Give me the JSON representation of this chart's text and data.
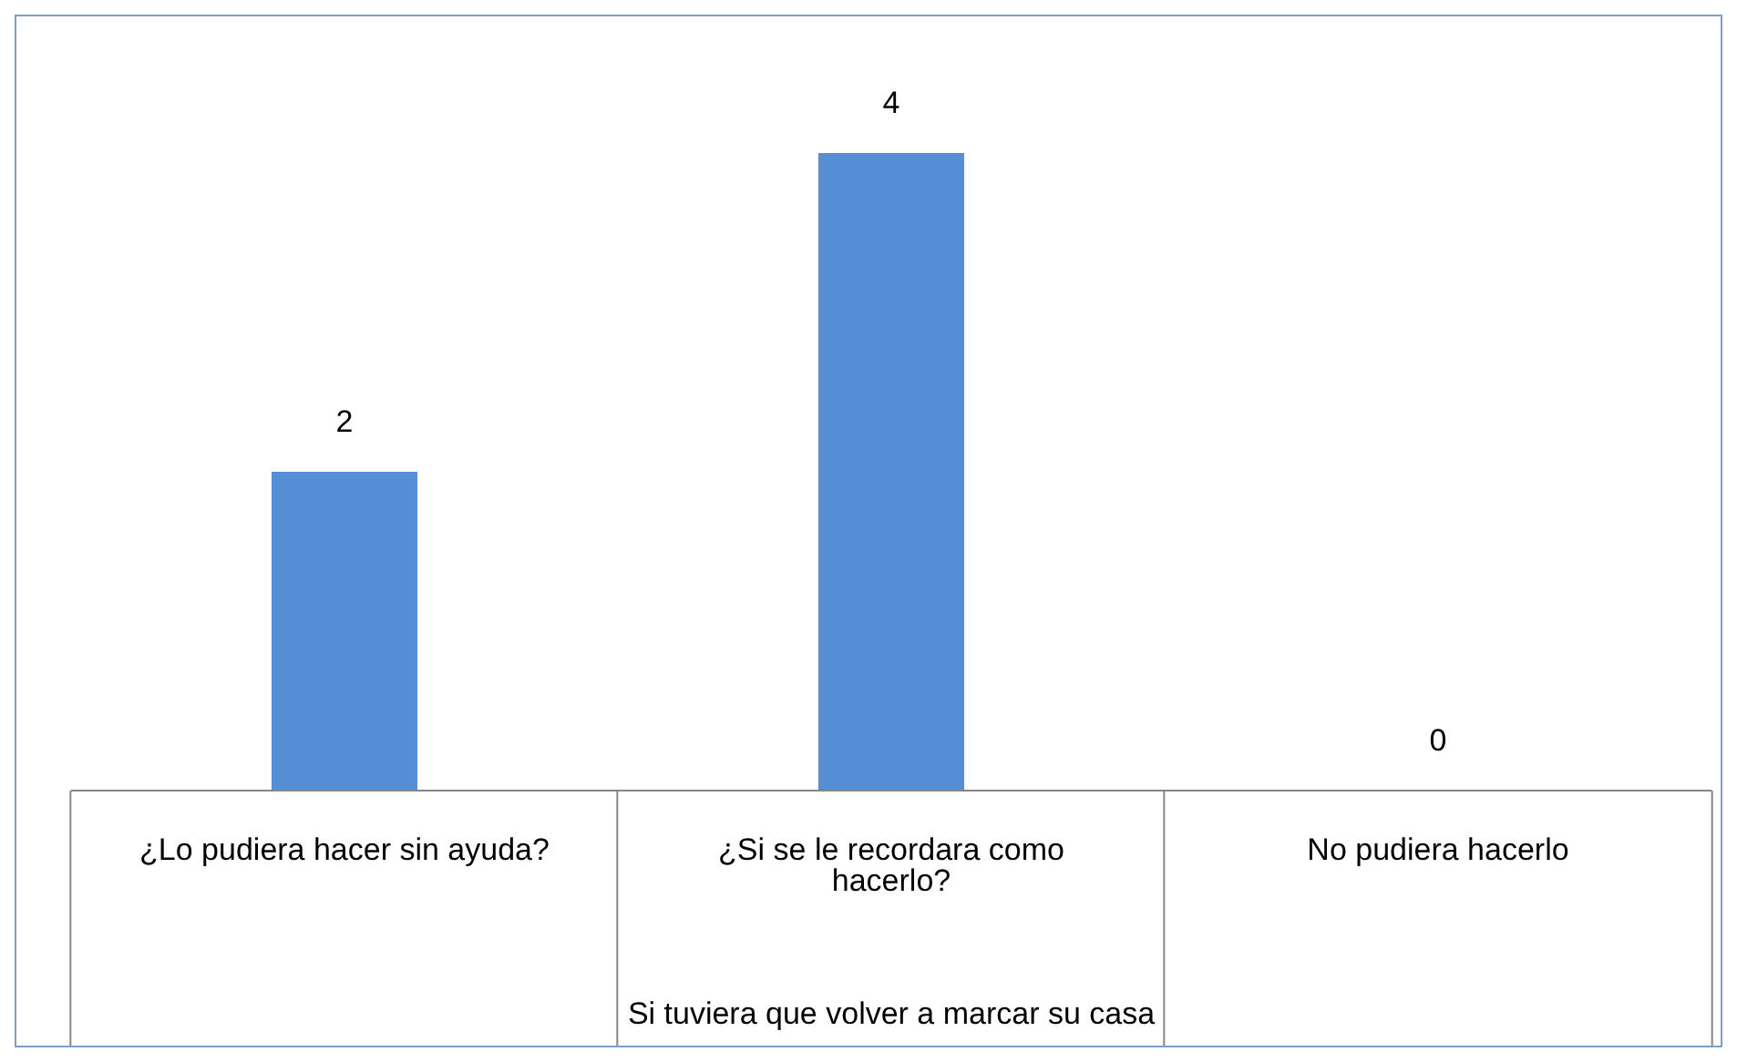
{
  "chart_data": {
    "type": "bar",
    "xlabel": "Si tuviera que volver a marcar su casa",
    "categories": [
      "¿Lo pudiera hacer sin ayuda?",
      "¿Si se le recordara como hacerlo?",
      "No pudiera hacerlo"
    ],
    "values": [
      2,
      4,
      0
    ],
    "color": "#558ed5",
    "data_labels": true
  }
}
